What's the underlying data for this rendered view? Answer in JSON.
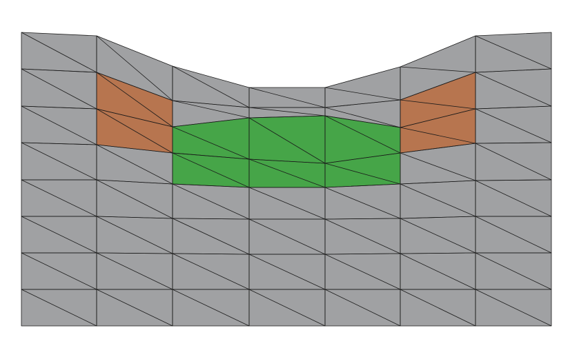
{
  "colors": {
    "background": "#ffffff",
    "mesh_fill": "#a0a1a3",
    "mesh_line": "#1a1a1a",
    "highlight_orange": "#b7754f",
    "highlight_green": "#46a548"
  },
  "mesh": {
    "columns": 7,
    "rows": 8,
    "diagonal": "top-left-to-bottom-right"
  },
  "regions": [
    {
      "name": "orange-region-left",
      "color": "#b7754f",
      "cells": [
        [
          1,
          1
        ],
        [
          1,
          2
        ]
      ]
    },
    {
      "name": "green-region",
      "color": "#46a548",
      "cells": [
        [
          2,
          2
        ],
        [
          2,
          3
        ],
        [
          3,
          2
        ],
        [
          3,
          3
        ],
        [
          4,
          2
        ],
        [
          4,
          3
        ]
      ]
    },
    {
      "name": "orange-region-right",
      "color": "#b7754f",
      "cells": [
        [
          5,
          1
        ],
        [
          5,
          2
        ]
      ]
    }
  ]
}
